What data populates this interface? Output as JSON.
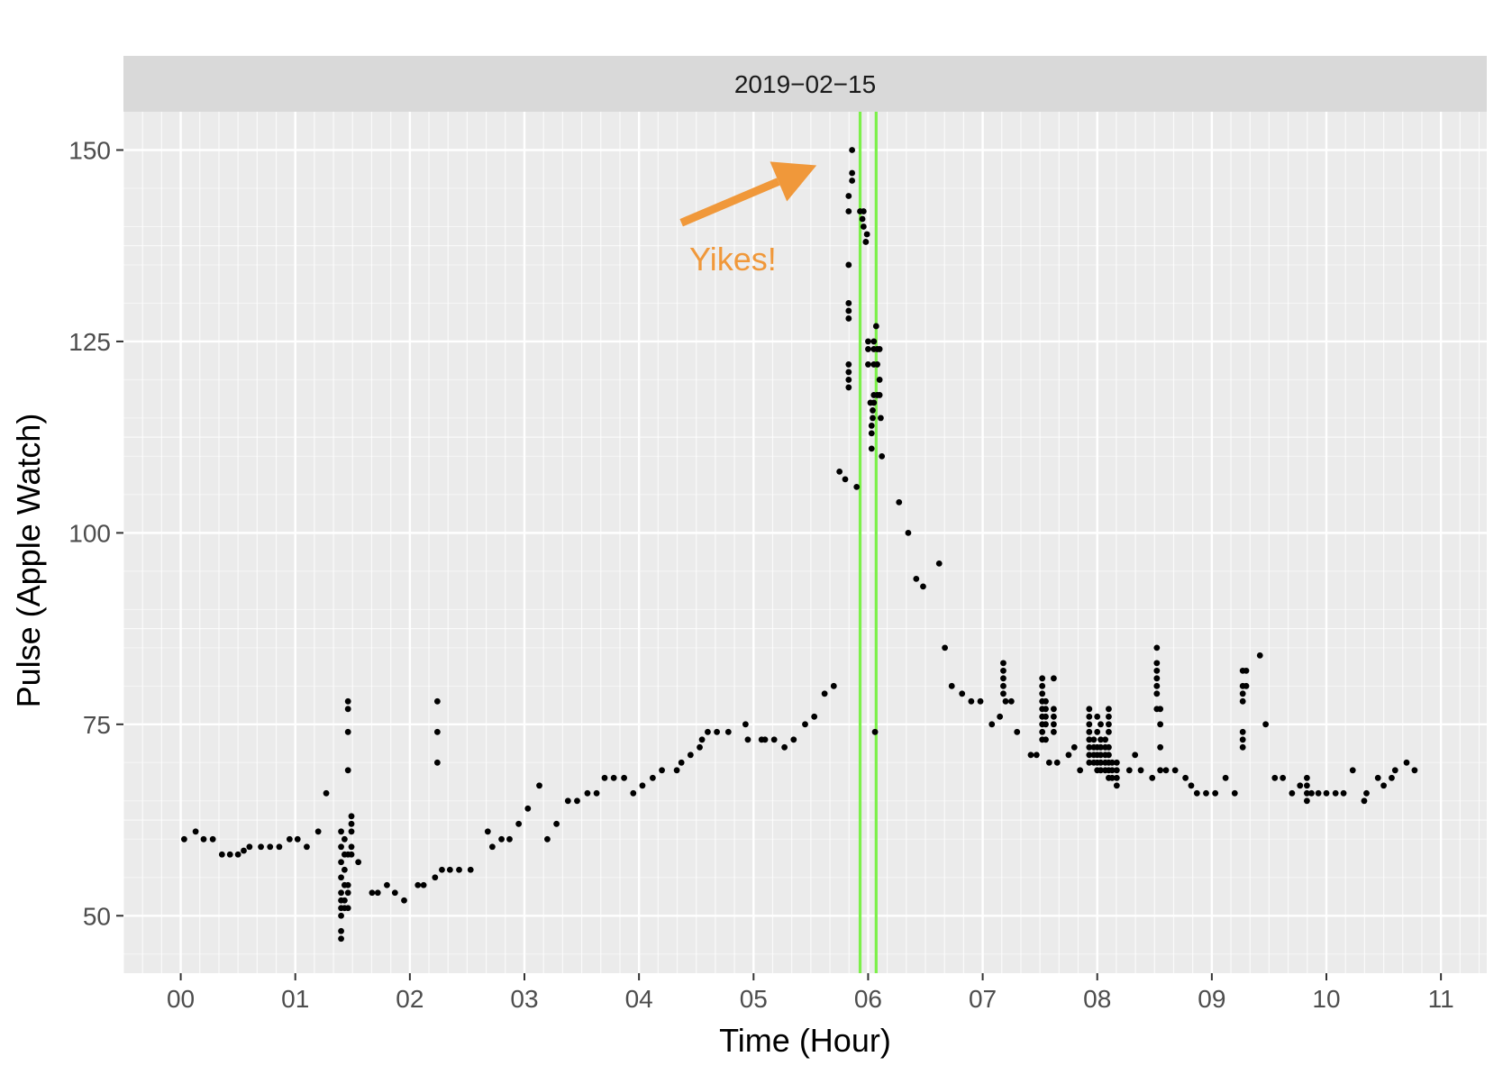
{
  "chart_data": {
    "type": "scatter",
    "facet_label": "2019−02−15",
    "xlabel": "Time (Hour)",
    "ylabel": "Pulse (Apple Watch)",
    "xlim": [
      -0.5,
      11.4
    ],
    "ylim": [
      42.5,
      155
    ],
    "x_ticks": [
      0,
      1,
      2,
      3,
      4,
      5,
      6,
      7,
      8,
      9,
      10,
      11
    ],
    "x_tick_labels": [
      "00",
      "01",
      "02",
      "03",
      "04",
      "05",
      "06",
      "07",
      "08",
      "09",
      "10",
      "11"
    ],
    "y_ticks": [
      50,
      75,
      100,
      125,
      150
    ],
    "y_tick_labels": [
      "50",
      "75",
      "100",
      "125",
      "150"
    ],
    "grid": true,
    "background": "#EBEBEB",
    "point_color": "#000000",
    "vlines": {
      "x": [
        5.93,
        6.07
      ],
      "color": "#7CF04A"
    },
    "annotation": {
      "text": "Yikes!",
      "color": "#F0983A",
      "arrow_from": [
        4.37,
        140.5
      ],
      "arrow_to": [
        5.55,
        148
      ]
    },
    "points": [
      [
        0.03,
        60
      ],
      [
        0.13,
        61
      ],
      [
        0.2,
        60
      ],
      [
        0.28,
        60
      ],
      [
        0.36,
        58
      ],
      [
        0.43,
        58
      ],
      [
        0.5,
        58
      ],
      [
        0.55,
        58.5
      ],
      [
        0.6,
        59
      ],
      [
        0.7,
        59
      ],
      [
        0.78,
        59
      ],
      [
        0.86,
        59
      ],
      [
        0.95,
        60
      ],
      [
        1.02,
        60
      ],
      [
        1.1,
        59
      ],
      [
        1.2,
        61
      ],
      [
        1.27,
        66
      ],
      [
        1.4,
        51
      ],
      [
        1.4,
        52
      ],
      [
        1.4,
        53
      ],
      [
        1.4,
        55
      ],
      [
        1.4,
        57
      ],
      [
        1.4,
        59
      ],
      [
        1.4,
        61
      ],
      [
        1.4,
        48
      ],
      [
        1.4,
        47
      ],
      [
        1.4,
        50
      ],
      [
        1.43,
        56
      ],
      [
        1.43,
        58
      ],
      [
        1.43,
        60
      ],
      [
        1.43,
        52
      ],
      [
        1.43,
        51
      ],
      [
        1.43,
        54
      ],
      [
        1.46,
        53
      ],
      [
        1.46,
        54
      ],
      [
        1.46,
        58
      ],
      [
        1.46,
        69
      ],
      [
        1.46,
        74
      ],
      [
        1.46,
        77
      ],
      [
        1.46,
        78
      ],
      [
        1.46,
        51
      ],
      [
        1.49,
        62
      ],
      [
        1.49,
        63
      ],
      [
        1.49,
        61
      ],
      [
        1.49,
        59
      ],
      [
        1.49,
        58
      ],
      [
        1.55,
        57
      ],
      [
        1.67,
        53
      ],
      [
        1.72,
        53
      ],
      [
        1.8,
        54
      ],
      [
        1.87,
        53
      ],
      [
        1.95,
        52
      ],
      [
        2.07,
        54
      ],
      [
        2.12,
        54
      ],
      [
        2.22,
        55
      ],
      [
        2.28,
        56
      ],
      [
        2.24,
        78
      ],
      [
        2.24,
        74
      ],
      [
        2.24,
        70
      ],
      [
        2.35,
        56
      ],
      [
        2.43,
        56
      ],
      [
        2.53,
        56
      ],
      [
        2.68,
        61
      ],
      [
        2.72,
        59
      ],
      [
        2.8,
        60
      ],
      [
        2.87,
        60
      ],
      [
        2.95,
        62
      ],
      [
        3.03,
        64
      ],
      [
        3.13,
        67
      ],
      [
        3.2,
        60
      ],
      [
        3.28,
        62
      ],
      [
        3.38,
        65
      ],
      [
        3.46,
        65
      ],
      [
        3.55,
        66
      ],
      [
        3.63,
        66
      ],
      [
        3.7,
        68
      ],
      [
        3.78,
        68
      ],
      [
        3.87,
        68
      ],
      [
        3.95,
        66
      ],
      [
        4.03,
        67
      ],
      [
        4.12,
        68
      ],
      [
        4.2,
        69
      ],
      [
        4.33,
        69
      ],
      [
        4.37,
        70
      ],
      [
        4.45,
        71
      ],
      [
        4.53,
        72
      ],
      [
        4.55,
        73
      ],
      [
        4.6,
        74
      ],
      [
        4.68,
        74
      ],
      [
        4.78,
        74
      ],
      [
        4.93,
        75
      ],
      [
        4.95,
        73
      ],
      [
        5.07,
        73
      ],
      [
        5.1,
        73
      ],
      [
        5.18,
        73
      ],
      [
        5.27,
        72
      ],
      [
        5.35,
        73
      ],
      [
        5.45,
        75
      ],
      [
        5.53,
        76
      ],
      [
        5.62,
        79
      ],
      [
        5.7,
        80
      ],
      [
        5.75,
        108
      ],
      [
        5.8,
        107
      ],
      [
        5.9,
        106
      ],
      [
        5.83,
        119
      ],
      [
        5.83,
        120
      ],
      [
        5.83,
        121
      ],
      [
        5.83,
        122
      ],
      [
        5.83,
        128
      ],
      [
        5.83,
        129
      ],
      [
        5.83,
        130
      ],
      [
        5.83,
        135
      ],
      [
        5.83,
        142
      ],
      [
        5.83,
        144
      ],
      [
        5.86,
        146
      ],
      [
        5.86,
        147
      ],
      [
        5.86,
        150
      ],
      [
        5.93,
        142
      ],
      [
        5.95,
        141
      ],
      [
        5.96,
        140
      ],
      [
        5.96,
        142
      ],
      [
        5.98,
        138
      ],
      [
        5.99,
        139
      ],
      [
        6.0,
        122
      ],
      [
        6.0,
        124
      ],
      [
        6.0,
        125
      ],
      [
        6.02,
        117
      ],
      [
        6.03,
        111
      ],
      [
        6.03,
        113
      ],
      [
        6.03,
        114
      ],
      [
        6.04,
        115
      ],
      [
        6.04,
        116
      ],
      [
        6.05,
        117
      ],
      [
        6.05,
        118
      ],
      [
        6.05,
        122
      ],
      [
        6.05,
        124
      ],
      [
        6.05,
        125
      ],
      [
        6.06,
        74
      ],
      [
        6.07,
        127
      ],
      [
        6.08,
        118
      ],
      [
        6.08,
        122
      ],
      [
        6.08,
        124
      ],
      [
        6.1,
        118
      ],
      [
        6.1,
        120
      ],
      [
        6.11,
        115
      ],
      [
        6.12,
        110
      ],
      [
        6.1,
        124
      ],
      [
        6.27,
        104
      ],
      [
        6.35,
        100
      ],
      [
        6.42,
        94
      ],
      [
        6.48,
        93
      ],
      [
        6.62,
        96
      ],
      [
        6.67,
        85
      ],
      [
        6.73,
        80
      ],
      [
        6.82,
        79
      ],
      [
        6.9,
        78
      ],
      [
        6.98,
        78
      ],
      [
        7.08,
        75
      ],
      [
        7.15,
        76
      ],
      [
        7.18,
        79
      ],
      [
        7.18,
        80
      ],
      [
        7.18,
        81
      ],
      [
        7.18,
        82
      ],
      [
        7.18,
        83
      ],
      [
        7.2,
        78
      ],
      [
        7.25,
        78
      ],
      [
        7.3,
        74
      ],
      [
        7.42,
        71
      ],
      [
        7.47,
        71
      ],
      [
        7.52,
        73
      ],
      [
        7.52,
        74
      ],
      [
        7.52,
        75
      ],
      [
        7.52,
        76
      ],
      [
        7.52,
        77
      ],
      [
        7.52,
        78
      ],
      [
        7.52,
        79
      ],
      [
        7.52,
        80
      ],
      [
        7.52,
        81
      ],
      [
        7.55,
        73
      ],
      [
        7.55,
        75
      ],
      [
        7.55,
        76
      ],
      [
        7.55,
        77
      ],
      [
        7.55,
        78
      ],
      [
        7.58,
        70
      ],
      [
        7.62,
        74
      ],
      [
        7.62,
        75
      ],
      [
        7.62,
        76
      ],
      [
        7.62,
        77
      ],
      [
        7.62,
        81
      ],
      [
        7.65,
        70
      ],
      [
        7.75,
        71
      ],
      [
        7.8,
        72
      ],
      [
        7.85,
        69
      ],
      [
        7.93,
        70
      ],
      [
        7.93,
        71
      ],
      [
        7.93,
        72
      ],
      [
        7.93,
        73
      ],
      [
        7.93,
        74
      ],
      [
        7.93,
        75
      ],
      [
        7.93,
        76
      ],
      [
        7.93,
        77
      ],
      [
        7.97,
        70
      ],
      [
        7.97,
        71
      ],
      [
        7.97,
        72
      ],
      [
        7.97,
        73
      ],
      [
        8.0,
        69
      ],
      [
        8.0,
        70
      ],
      [
        8.0,
        71
      ],
      [
        8.0,
        72
      ],
      [
        8.0,
        74
      ],
      [
        8.0,
        76
      ],
      [
        8.03,
        69
      ],
      [
        8.03,
        70
      ],
      [
        8.03,
        71
      ],
      [
        8.03,
        72
      ],
      [
        8.03,
        73
      ],
      [
        8.03,
        75
      ],
      [
        8.07,
        69
      ],
      [
        8.07,
        70
      ],
      [
        8.07,
        71
      ],
      [
        8.07,
        72
      ],
      [
        8.07,
        73
      ],
      [
        8.1,
        68
      ],
      [
        8.1,
        69
      ],
      [
        8.1,
        70
      ],
      [
        8.1,
        71
      ],
      [
        8.1,
        72
      ],
      [
        8.1,
        74
      ],
      [
        8.1,
        75
      ],
      [
        8.1,
        76
      ],
      [
        8.1,
        77
      ],
      [
        8.13,
        68
      ],
      [
        8.13,
        69
      ],
      [
        8.13,
        70
      ],
      [
        8.17,
        67
      ],
      [
        8.17,
        68
      ],
      [
        8.17,
        69
      ],
      [
        8.17,
        70
      ],
      [
        8.28,
        69
      ],
      [
        8.33,
        71
      ],
      [
        8.38,
        69
      ],
      [
        8.48,
        68
      ],
      [
        8.52,
        79
      ],
      [
        8.52,
        80
      ],
      [
        8.52,
        81
      ],
      [
        8.52,
        82
      ],
      [
        8.52,
        83
      ],
      [
        8.52,
        85
      ],
      [
        8.52,
        77
      ],
      [
        8.55,
        69
      ],
      [
        8.55,
        72
      ],
      [
        8.55,
        75
      ],
      [
        8.55,
        77
      ],
      [
        8.6,
        69
      ],
      [
        8.68,
        69
      ],
      [
        8.77,
        68
      ],
      [
        8.82,
        67
      ],
      [
        8.87,
        66
      ],
      [
        8.95,
        66
      ],
      [
        9.03,
        66
      ],
      [
        9.12,
        68
      ],
      [
        9.2,
        66
      ],
      [
        9.27,
        72
      ],
      [
        9.27,
        73
      ],
      [
        9.27,
        74
      ],
      [
        9.27,
        78
      ],
      [
        9.27,
        79
      ],
      [
        9.27,
        80
      ],
      [
        9.27,
        82
      ],
      [
        9.3,
        80
      ],
      [
        9.3,
        82
      ],
      [
        9.42,
        84
      ],
      [
        9.47,
        75
      ],
      [
        9.55,
        68
      ],
      [
        9.62,
        68
      ],
      [
        9.7,
        66
      ],
      [
        9.77,
        67
      ],
      [
        9.83,
        65
      ],
      [
        9.83,
        66
      ],
      [
        9.83,
        67
      ],
      [
        9.83,
        68
      ],
      [
        9.87,
        66
      ],
      [
        9.93,
        66
      ],
      [
        10.0,
        66
      ],
      [
        10.08,
        66
      ],
      [
        10.15,
        66
      ],
      [
        10.23,
        69
      ],
      [
        10.33,
        65
      ],
      [
        10.35,
        66
      ],
      [
        10.45,
        68
      ],
      [
        10.5,
        67
      ],
      [
        10.57,
        68
      ],
      [
        10.6,
        69
      ],
      [
        10.7,
        70
      ],
      [
        10.77,
        69
      ]
    ]
  }
}
